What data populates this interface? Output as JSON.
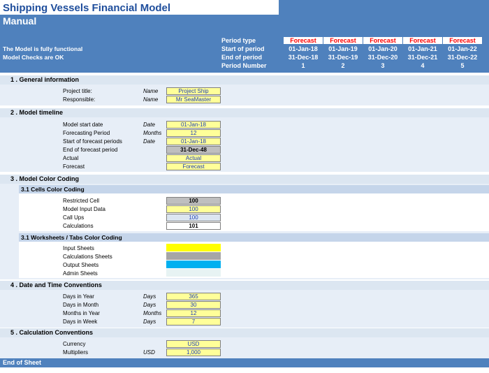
{
  "title": "Shipping Vessels Financial Model",
  "subtitle": "Manual",
  "status_lines": [
    "The Model is fully functional",
    "Model Checks are OK"
  ],
  "header_labels": {
    "period_type": "Period type",
    "start_of_period": "Start of period",
    "end_of_period": "End of period",
    "period_number": "Period Number"
  },
  "periods": [
    {
      "type": "Forecast",
      "start": "01-Jan-18",
      "end": "31-Dec-18",
      "number": "1"
    },
    {
      "type": "Forecast",
      "start": "01-Jan-19",
      "end": "31-Dec-19",
      "number": "2"
    },
    {
      "type": "Forecast",
      "start": "01-Jan-20",
      "end": "31-Dec-20",
      "number": "3"
    },
    {
      "type": "Forecast",
      "start": "01-Jan-21",
      "end": "31-Dec-21",
      "number": "4"
    },
    {
      "type": "Forecast",
      "start": "01-Jan-22",
      "end": "31-Dec-22",
      "number": "5"
    }
  ],
  "sections": {
    "general": {
      "title": "1 . General information",
      "rows": [
        {
          "label": "Project title:",
          "unit": "Name",
          "value": "Project Ship"
        },
        {
          "label": "Responsible:",
          "unit": "Name",
          "value": "Mr SeaMaster"
        }
      ]
    },
    "timeline": {
      "title": "2 . Model timeline",
      "rows": [
        {
          "label": "Model start date",
          "unit": "Date",
          "value": "01-Jan-18"
        },
        {
          "label": "Forecasting Period",
          "unit": "Months",
          "value": "12"
        },
        {
          "label": "Start of forecast periods",
          "unit": "Date",
          "value": "01-Jan-18"
        },
        {
          "label": "End of forecast period",
          "unit": "",
          "value": "31-Dec-48"
        },
        {
          "label": "Actual",
          "unit": "",
          "value": "Actual"
        },
        {
          "label": "Forecast",
          "unit": "",
          "value": "Forecast"
        }
      ]
    },
    "color": {
      "title": "3 . Model Color Coding",
      "sub1": "3.1 Cells Color Coding",
      "cells": [
        {
          "label": "Restricted Cell",
          "value": "100"
        },
        {
          "label": "Model Input Data",
          "value": "100"
        },
        {
          "label": "Call Ups",
          "value": "100"
        },
        {
          "label": "Calculations",
          "value": "101"
        }
      ],
      "sub2": "3.1 Worksheets / Tabs Color Coding",
      "sheets": [
        {
          "label": "Input Sheets",
          "color": "#ffff00"
        },
        {
          "label": "Calculations Sheets",
          "color": "#a6a6a6"
        },
        {
          "label": "Output Sheets",
          "color": "#00b0f0"
        },
        {
          "label": "Admin Sheets",
          "color": "#e7f3f3"
        }
      ]
    },
    "datetime": {
      "title": "4 . Date and Time Conventions",
      "rows": [
        {
          "label": "Days in Year",
          "unit": "Days",
          "value": "365"
        },
        {
          "label": "Days in Month",
          "unit": "Days",
          "value": "30"
        },
        {
          "label": "Months in Year",
          "unit": "Months",
          "value": "12"
        },
        {
          "label": "Days in Week",
          "unit": "Days",
          "value": "7"
        }
      ]
    },
    "calc": {
      "title": "5 . Calculation Conventions",
      "rows": [
        {
          "label": "Currency",
          "unit": "",
          "value": "USD"
        },
        {
          "label": "Multipliers",
          "unit": "USD",
          "value": "1,000"
        }
      ]
    }
  },
  "footer": "End of Sheet",
  "colors": {
    "header_blue": "#4f81bd",
    "forecast_red": "#ff0000",
    "input_yellow": "#ffff99"
  }
}
